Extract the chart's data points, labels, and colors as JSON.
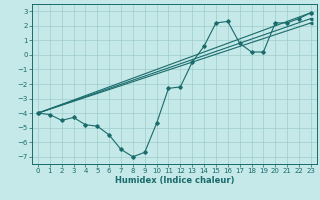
{
  "xlabel": "Humidex (Indice chaleur)",
  "xlim": [
    -0.5,
    23.5
  ],
  "ylim": [
    -7.5,
    3.5
  ],
  "xticks": [
    0,
    1,
    2,
    3,
    4,
    5,
    6,
    7,
    8,
    9,
    10,
    11,
    12,
    13,
    14,
    15,
    16,
    17,
    18,
    19,
    20,
    21,
    22,
    23
  ],
  "yticks": [
    -7,
    -6,
    -5,
    -4,
    -3,
    -2,
    -1,
    0,
    1,
    2,
    3
  ],
  "background_color": "#c5e8e8",
  "grid_color": "#a0cccc",
  "line_color": "#1a6b6b",
  "line1_x": [
    0,
    1,
    2,
    3,
    4,
    5,
    6,
    7,
    8,
    9,
    10,
    11,
    12,
    13,
    14,
    15,
    16,
    17,
    18,
    19,
    20,
    21,
    22,
    23
  ],
  "line1_y": [
    -4.0,
    -4.1,
    -4.5,
    -4.3,
    -4.8,
    -4.9,
    -5.5,
    -6.5,
    -7.0,
    -6.7,
    -4.7,
    -2.3,
    -2.2,
    -0.5,
    0.6,
    2.2,
    2.3,
    0.8,
    0.2,
    0.2,
    2.2,
    2.2,
    2.5,
    2.9
  ],
  "line2_x": [
    0,
    23
  ],
  "line2_y": [
    -4.0,
    2.9
  ],
  "line3_x": [
    0,
    23
  ],
  "line3_y": [
    -4.0,
    2.5
  ],
  "line4_x": [
    0,
    23
  ],
  "line4_y": [
    -4.0,
    2.2
  ],
  "tick_fontsize": 5.0,
  "xlabel_fontsize": 6.0
}
